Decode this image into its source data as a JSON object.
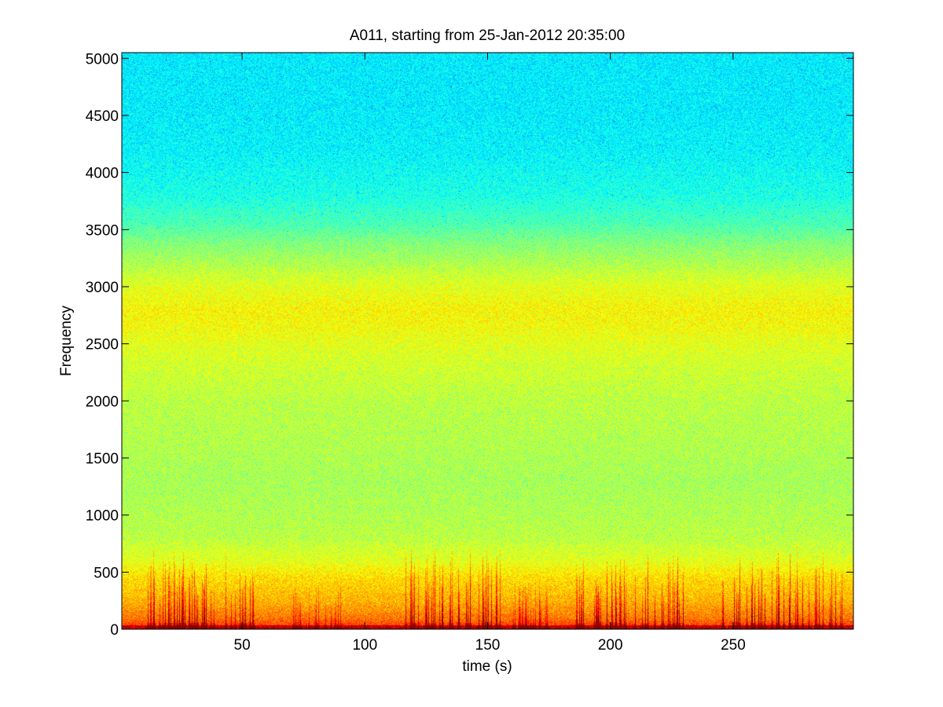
{
  "chart_data": {
    "type": "heatmap",
    "title": "A011, starting from 25-Jan-2012 20:35:00",
    "xlabel": "time (s)",
    "ylabel": "Frequency",
    "xlim": [
      1,
      299
    ],
    "ylim": [
      0,
      5050
    ],
    "x_ticks": [
      50,
      100,
      150,
      200,
      250
    ],
    "x_tick_labels": [
      "50",
      "100",
      "150",
      "200",
      "250"
    ],
    "y_ticks": [
      0,
      500,
      1000,
      1500,
      2000,
      2500,
      3000,
      3500,
      4000,
      4500,
      5000
    ],
    "y_tick_labels": [
      "0",
      "500",
      "1000",
      "1500",
      "2000",
      "2500",
      "3000",
      "3500",
      "4000",
      "4500",
      "5000"
    ],
    "grid": false,
    "colormap": "jet",
    "colors": {
      "cyan_green": "#4ff0b0",
      "green": "#a8f06a",
      "yellow": "#eef22a",
      "orange": "#f0a020",
      "red": "#cc1010"
    },
    "frequency_profile": {
      "frequency": [
        0,
        100,
        250,
        450,
        600,
        800,
        1000,
        1300,
        1600,
        2000,
        2300,
        2500,
        2650,
        2800,
        3000,
        3200,
        3400,
        3550,
        3800,
        4200,
        4600,
        5050
      ],
      "level": [
        0.85,
        0.76,
        0.7,
        0.66,
        0.6,
        0.56,
        0.55,
        0.54,
        0.55,
        0.56,
        0.58,
        0.6,
        0.62,
        0.63,
        0.6,
        0.55,
        0.5,
        0.45,
        0.4,
        0.37,
        0.36,
        0.36
      ]
    },
    "transient_clusters": [
      {
        "start": 10,
        "end": 55,
        "max_frequency": 600,
        "intensity": 0.95
      },
      {
        "start": 70,
        "end": 90,
        "max_frequency": 300,
        "intensity": 0.55
      },
      {
        "start": 115,
        "end": 155,
        "max_frequency": 600,
        "intensity": 1.0
      },
      {
        "start": 160,
        "end": 175,
        "max_frequency": 350,
        "intensity": 0.55
      },
      {
        "start": 185,
        "end": 230,
        "max_frequency": 550,
        "intensity": 0.95
      },
      {
        "start": 245,
        "end": 295,
        "max_frequency": 620,
        "intensity": 1.0
      }
    ]
  }
}
